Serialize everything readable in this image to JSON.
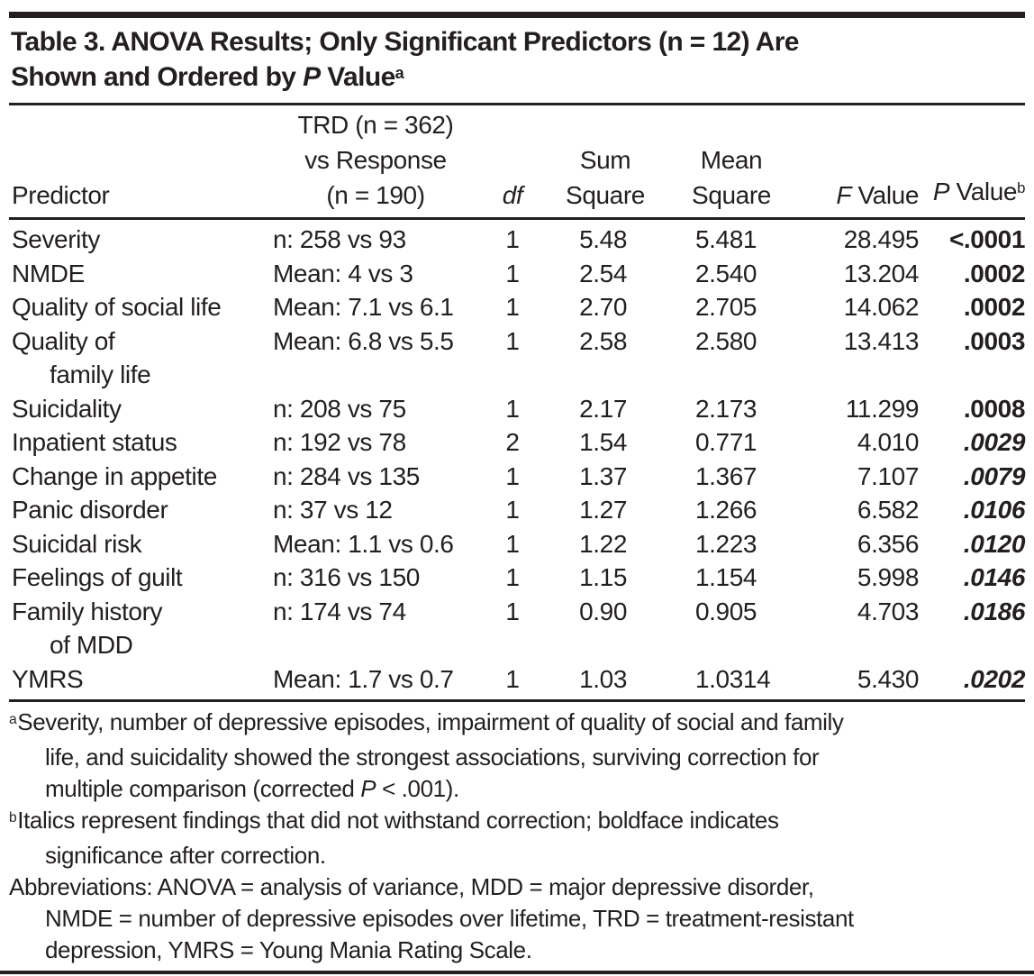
{
  "colors": {
    "text": "#231f20",
    "rule": "#231f20",
    "background": "#ffffff"
  },
  "title": {
    "lines": [
      [
        {
          "t": "Table 3. ANOVA Results; Only Significant Predictors (n = 12) Are"
        }
      ],
      [
        {
          "t": "Shown and Ordered by "
        },
        {
          "t": "P",
          "i": true
        },
        {
          "t": " Value"
        },
        {
          "t": "a",
          "sup": true
        }
      ]
    ]
  },
  "header": {
    "columns": [
      {
        "name": "predictor",
        "align": "left",
        "lines": [
          [
            {
              "t": "Predictor"
            }
          ]
        ]
      },
      {
        "name": "comparison",
        "align": "center",
        "lines": [
          [
            {
              "t": "TRD (n = 362)"
            }
          ],
          [
            {
              "t": "vs Response"
            }
          ],
          [
            {
              "t": "(n = 190)"
            }
          ]
        ]
      },
      {
        "name": "df",
        "align": "center",
        "lines": [
          [
            {
              "t": "df",
              "i": true
            }
          ]
        ]
      },
      {
        "name": "sum-square",
        "align": "center",
        "lines": [
          [
            {
              "t": "Sum"
            }
          ],
          [
            {
              "t": "Square"
            }
          ]
        ]
      },
      {
        "name": "mean-square",
        "align": "center",
        "lines": [
          [
            {
              "t": "Mean"
            }
          ],
          [
            {
              "t": "Square"
            }
          ]
        ]
      },
      {
        "name": "f-value",
        "align": "right",
        "lines": [
          [
            {
              "t": "F",
              "i": true
            },
            {
              "t": " Value"
            }
          ]
        ]
      },
      {
        "name": "p-value",
        "align": "right",
        "lines": [
          [
            {
              "t": "P",
              "i": true
            },
            {
              "t": " Value"
            },
            {
              "t": "b",
              "sup": true
            }
          ]
        ]
      }
    ]
  },
  "rows": [
    {
      "predictor": [
        "Severity"
      ],
      "comparison": "n: 258 vs 93",
      "df": "1",
      "sum_square": "5.48",
      "mean_square": "5.481",
      "f_value": "28.495",
      "p_value": "<.0001",
      "p_style": "bold"
    },
    {
      "predictor": [
        "NMDE"
      ],
      "comparison": "Mean: 4 vs 3",
      "df": "1",
      "sum_square": "2.54",
      "mean_square": "2.540",
      "f_value": "13.204",
      "p_value": ".0002",
      "p_style": "bold"
    },
    {
      "predictor": [
        "Quality of social life"
      ],
      "comparison": "Mean: 7.1 vs 6.1",
      "df": "1",
      "sum_square": "2.70",
      "mean_square": "2.705",
      "f_value": "14.062",
      "p_value": ".0002",
      "p_style": "bold"
    },
    {
      "predictor": [
        "Quality of",
        "family life"
      ],
      "comparison": "Mean: 6.8 vs 5.5",
      "df": "1",
      "sum_square": "2.58",
      "mean_square": "2.580",
      "f_value": "13.413",
      "p_value": ".0003",
      "p_style": "bold"
    },
    {
      "predictor": [
        "Suicidality"
      ],
      "comparison": "n: 208 vs 75",
      "df": "1",
      "sum_square": "2.17",
      "mean_square": "2.173",
      "f_value": "11.299",
      "p_value": ".0008",
      "p_style": "bold"
    },
    {
      "predictor": [
        "Inpatient status"
      ],
      "comparison": "n: 192 vs 78",
      "df": "2",
      "sum_square": "1.54",
      "mean_square": "0.771",
      "f_value": "4.010",
      "p_value": ".0029",
      "p_style": "bold-italic"
    },
    {
      "predictor": [
        "Change in appetite"
      ],
      "comparison": "n: 284 vs 135",
      "df": "1",
      "sum_square": "1.37",
      "mean_square": "1.367",
      "f_value": "7.107",
      "p_value": ".0079",
      "p_style": "bold-italic"
    },
    {
      "predictor": [
        "Panic disorder"
      ],
      "comparison": "n: 37 vs 12",
      "df": "1",
      "sum_square": "1.27",
      "mean_square": "1.266",
      "f_value": "6.582",
      "p_value": ".0106",
      "p_style": "bold-italic"
    },
    {
      "predictor": [
        "Suicidal risk"
      ],
      "comparison": "Mean: 1.1 vs 0.6",
      "df": "1",
      "sum_square": "1.22",
      "mean_square": "1.223",
      "f_value": "6.356",
      "p_value": ".0120",
      "p_style": "bold-italic"
    },
    {
      "predictor": [
        "Feelings of guilt"
      ],
      "comparison": "n: 316 vs 150",
      "df": "1",
      "sum_square": "1.15",
      "mean_square": "1.154",
      "f_value": "5.998",
      "p_value": ".0146",
      "p_style": "bold-italic"
    },
    {
      "predictor": [
        "Family history",
        "of MDD"
      ],
      "comparison": "n: 174 vs 74",
      "df": "1",
      "sum_square": "0.90",
      "mean_square": "0.905",
      "f_value": "4.703",
      "p_value": ".0186",
      "p_style": "bold-italic"
    },
    {
      "predictor": [
        "YMRS"
      ],
      "comparison": "Mean: 1.7 vs 0.7",
      "df": "1",
      "sum_square": "1.03",
      "mean_square": "1.0314",
      "f_value": "5.430",
      "p_value": ".0202",
      "p_style": "bold-italic"
    }
  ],
  "footnotes": [
    {
      "marker": "a",
      "lines": [
        [
          {
            "t": "Severity, number of depressive episodes, impairment of quality of social and family"
          }
        ],
        [
          {
            "t": "life, and suicidality showed the strongest associations, surviving correction for"
          }
        ],
        [
          {
            "t": "multiple comparison (corrected "
          },
          {
            "t": "P",
            "i": true
          },
          {
            "t": " < .001)."
          }
        ]
      ]
    },
    {
      "marker": "b",
      "lines": [
        [
          {
            "t": "Italics represent findings that did not withstand correction; boldface indicates"
          }
        ],
        [
          {
            "t": "significance after correction."
          }
        ]
      ]
    },
    {
      "marker": "",
      "lines": [
        [
          {
            "t": "Abbreviations: ANOVA = analysis of variance, MDD = major depressive disorder,"
          }
        ],
        [
          {
            "t": "NMDE = number of depressive episodes over lifetime, TRD = treatment-resistant"
          }
        ],
        [
          {
            "t": "depression, YMRS = Young Mania Rating Scale."
          }
        ]
      ]
    }
  ]
}
